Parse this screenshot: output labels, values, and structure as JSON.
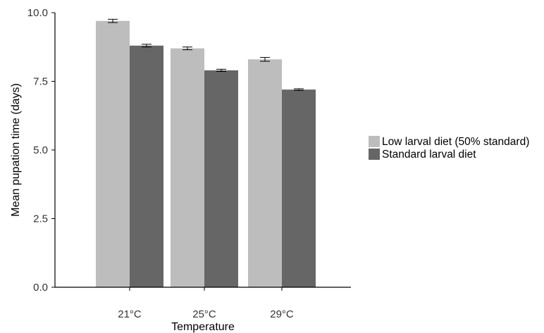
{
  "chart_data": {
    "type": "bar",
    "xlabel": "Temperature",
    "ylabel": "Mean pupation time (days)",
    "categories": [
      "21°C",
      "25°C",
      "29°C"
    ],
    "ylim": [
      0,
      10
    ],
    "yticks": [
      "0.0",
      "2.5",
      "5.0",
      "7.5",
      "10.0"
    ],
    "yticks_values": [
      0,
      2.5,
      5,
      7.5,
      10
    ],
    "grid": false,
    "legend_position": "right",
    "series": [
      {
        "name": "Low larval diet (50% standard)",
        "color": "#bdbdbd",
        "values": [
          9.7,
          8.7,
          8.3
        ],
        "errors": [
          0.06,
          0.05,
          0.07
        ]
      },
      {
        "name": "Standard larval diet",
        "color": "#666666",
        "values": [
          8.8,
          7.9,
          7.2
        ],
        "errors": [
          0.05,
          0.04,
          0.03
        ]
      }
    ]
  }
}
